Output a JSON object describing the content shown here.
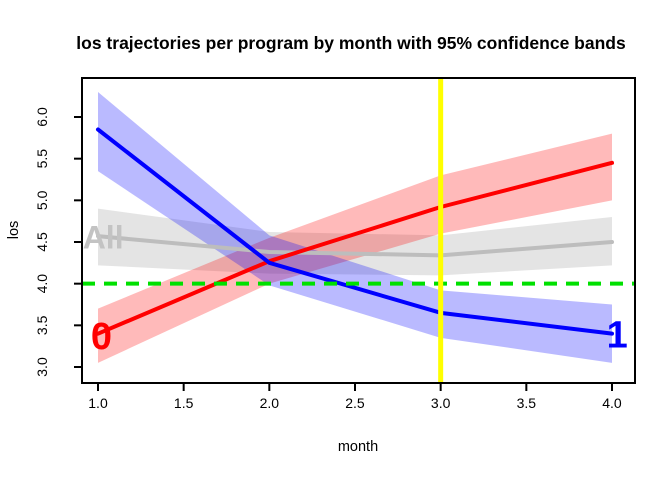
{
  "chart_data": {
    "type": "line",
    "title": "los trajectories per program by month with 95% confidence bands",
    "xlabel": "month",
    "ylabel": "los",
    "x": [
      1,
      2,
      3,
      4
    ],
    "x_ticks": [
      "1.0",
      "1.5",
      "2.0",
      "2.5",
      "3.0",
      "3.5",
      "4.0"
    ],
    "y_ticks": [
      "3.0",
      "3.5",
      "4.0",
      "4.5",
      "5.0",
      "5.5",
      "6.0"
    ],
    "xlim": [
      0.9,
      4.13
    ],
    "ylim": [
      2.81,
      6.47
    ],
    "grid": false,
    "legend": "none",
    "series": [
      {
        "name": "All",
        "line_color": "#BDBDBD",
        "band_color": "rgba(185,185,185,0.38)",
        "fit": [
          4.57,
          4.38,
          4.34,
          4.5
        ],
        "lower": [
          4.22,
          4.12,
          4.1,
          4.22
        ],
        "upper": [
          4.9,
          4.62,
          4.58,
          4.8
        ]
      },
      {
        "name": "0",
        "line_color": "#FF0000",
        "band_color": "rgba(255,0,0,0.27)",
        "fit": [
          3.4,
          4.27,
          4.92,
          5.45
        ],
        "lower": [
          3.05,
          4.0,
          4.6,
          5.0
        ],
        "upper": [
          3.7,
          4.55,
          5.3,
          5.8
        ]
      },
      {
        "name": "1",
        "line_color": "#0000FF",
        "band_color": "rgba(0,0,255,0.27)",
        "fit": [
          5.85,
          4.25,
          3.65,
          3.4
        ],
        "lower": [
          5.35,
          3.98,
          3.35,
          3.05
        ],
        "upper": [
          6.3,
          4.58,
          3.92,
          3.75
        ]
      }
    ],
    "reference_lines": [
      {
        "orientation": "horizontal",
        "value": 4.0,
        "color": "#00E000",
        "style": "dashed",
        "width": 4
      },
      {
        "orientation": "vertical",
        "value": 3.0,
        "color": "#FFFF00",
        "style": "solid",
        "width": 5
      }
    ],
    "annotations": [
      {
        "text": "0",
        "x": 1.02,
        "y": 3.38,
        "color": "#FF0000",
        "font_px": 38
      },
      {
        "text": "1",
        "x": 4.03,
        "y": 3.4,
        "color": "#0000FF",
        "font_px": 38
      },
      {
        "text": "All",
        "x": 1.03,
        "y": 4.56,
        "color": "#C3C3C3",
        "font_px": 32
      }
    ]
  }
}
